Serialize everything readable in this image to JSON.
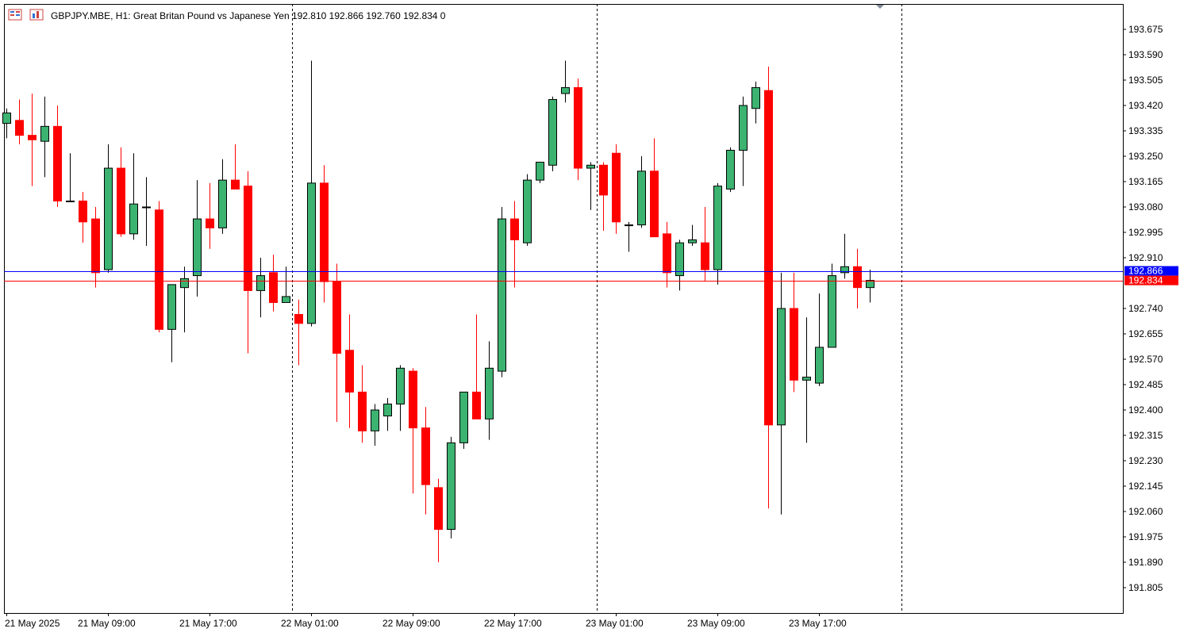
{
  "header": {
    "symbol_info": "GBPJPY.MBE, H1:  Great Britan Pound vs Japanese Yen  192.810 192.866 192.760 192.834  0",
    "icons": [
      "window-list-icon",
      "chart-window-icon"
    ]
  },
  "colors": {
    "bull": "#3cb371",
    "bear": "#ff0000",
    "ask_line": "#0000ff",
    "bid_line": "#ff0000",
    "frame": "#000000",
    "text": "#000000",
    "session_separator": "#000000"
  },
  "chart_data": {
    "type": "candlestick",
    "title": "GBPJPY.MBE, H1:  Great Britan Pound vs Japanese Yen  192.810 192.866 192.760 192.834  0",
    "symbol": "GBPJPY.MBE",
    "timeframe": "H1",
    "ylim": [
      191.72,
      193.76
    ],
    "y_ticks": [
      "193.675",
      "193.590",
      "193.505",
      "193.420",
      "193.335",
      "193.250",
      "193.165",
      "193.080",
      "192.995",
      "192.910",
      "192.740",
      "192.655",
      "192.570",
      "192.485",
      "192.400",
      "192.315",
      "192.230",
      "192.145",
      "192.060",
      "191.975",
      "191.890",
      "191.805"
    ],
    "x_ticks": [
      "21 May 2025",
      "21 May 09:00",
      "21 May 17:00",
      "22 May 01:00",
      "22 May 09:00",
      "22 May 17:00",
      "23 May 01:00",
      "23 May 09:00",
      "23 May 17:00"
    ],
    "price_lines": [
      {
        "label": "192.866",
        "value": 192.866,
        "kind": "ask"
      },
      {
        "label": "192.834",
        "value": 192.834,
        "kind": "bid"
      }
    ],
    "day_separators": [
      "22 May 00:00",
      "23 May 00:00",
      "24 May 00:00"
    ],
    "candles": [
      {
        "o": 193.36,
        "h": 193.41,
        "l": 193.31,
        "c": 193.395
      },
      {
        "o": 193.37,
        "h": 193.44,
        "l": 193.29,
        "c": 193.32
      },
      {
        "o": 193.32,
        "h": 193.46,
        "l": 193.15,
        "c": 193.305
      },
      {
        "o": 193.3,
        "h": 193.45,
        "l": 193.18,
        "c": 193.35
      },
      {
        "o": 193.35,
        "h": 193.42,
        "l": 193.08,
        "c": 193.1
      },
      {
        "o": 193.1,
        "h": 193.26,
        "l": 193.1,
        "c": 193.1
      },
      {
        "o": 193.1,
        "h": 193.13,
        "l": 192.96,
        "c": 193.03
      },
      {
        "o": 193.04,
        "h": 193.08,
        "l": 192.81,
        "c": 192.86
      },
      {
        "o": 192.87,
        "h": 193.29,
        "l": 192.86,
        "c": 193.21
      },
      {
        "o": 193.21,
        "h": 193.28,
        "l": 192.98,
        "c": 192.99
      },
      {
        "o": 192.99,
        "h": 193.26,
        "l": 192.97,
        "c": 193.09
      },
      {
        "o": 193.08,
        "h": 193.18,
        "l": 192.95,
        "c": 193.08
      },
      {
        "o": 193.07,
        "h": 193.1,
        "l": 192.66,
        "c": 192.67
      },
      {
        "o": 192.67,
        "h": 192.82,
        "l": 192.56,
        "c": 192.82
      },
      {
        "o": 192.81,
        "h": 192.88,
        "l": 192.66,
        "c": 192.84
      },
      {
        "o": 192.85,
        "h": 193.17,
        "l": 192.78,
        "c": 193.04
      },
      {
        "o": 193.04,
        "h": 193.16,
        "l": 192.94,
        "c": 193.01
      },
      {
        "o": 193.01,
        "h": 193.24,
        "l": 192.99,
        "c": 193.17
      },
      {
        "o": 193.17,
        "h": 193.29,
        "l": 193.14,
        "c": 193.14
      },
      {
        "o": 193.15,
        "h": 193.2,
        "l": 192.59,
        "c": 192.8
      },
      {
        "o": 192.8,
        "h": 192.91,
        "l": 192.71,
        "c": 192.85
      },
      {
        "o": 192.86,
        "h": 192.92,
        "l": 192.73,
        "c": 192.76
      },
      {
        "o": 192.76,
        "h": 192.88,
        "l": 192.76,
        "c": 192.78
      },
      {
        "o": 192.72,
        "h": 192.77,
        "l": 192.55,
        "c": 192.69
      },
      {
        "o": 192.69,
        "h": 193.57,
        "l": 192.68,
        "c": 193.16
      },
      {
        "o": 193.16,
        "h": 193.22,
        "l": 192.76,
        "c": 192.83
      },
      {
        "o": 192.83,
        "h": 192.89,
        "l": 192.36,
        "c": 192.59
      },
      {
        "o": 192.6,
        "h": 192.72,
        "l": 192.34,
        "c": 192.46
      },
      {
        "o": 192.46,
        "h": 192.55,
        "l": 192.29,
        "c": 192.33
      },
      {
        "o": 192.33,
        "h": 192.42,
        "l": 192.28,
        "c": 192.4
      },
      {
        "o": 192.38,
        "h": 192.44,
        "l": 192.33,
        "c": 192.42
      },
      {
        "o": 192.42,
        "h": 192.55,
        "l": 192.33,
        "c": 192.54
      },
      {
        "o": 192.53,
        "h": 192.54,
        "l": 192.12,
        "c": 192.34
      },
      {
        "o": 192.34,
        "h": 192.41,
        "l": 192.05,
        "c": 192.15
      },
      {
        "o": 192.14,
        "h": 192.17,
        "l": 191.89,
        "c": 192.0
      },
      {
        "o": 192.0,
        "h": 192.31,
        "l": 191.97,
        "c": 192.29
      },
      {
        "o": 192.29,
        "h": 192.45,
        "l": 192.27,
        "c": 192.46
      },
      {
        "o": 192.46,
        "h": 192.72,
        "l": 192.37,
        "c": 192.37
      },
      {
        "o": 192.37,
        "h": 192.63,
        "l": 192.3,
        "c": 192.54
      },
      {
        "o": 192.53,
        "h": 193.08,
        "l": 192.51,
        "c": 193.04
      },
      {
        "o": 193.04,
        "h": 193.1,
        "l": 192.81,
        "c": 192.97
      },
      {
        "o": 192.96,
        "h": 193.19,
        "l": 192.95,
        "c": 193.17
      },
      {
        "o": 193.17,
        "h": 193.23,
        "l": 193.16,
        "c": 193.23
      },
      {
        "o": 193.22,
        "h": 193.45,
        "l": 193.2,
        "c": 193.44
      },
      {
        "o": 193.46,
        "h": 193.57,
        "l": 193.43,
        "c": 193.48
      },
      {
        "o": 193.48,
        "h": 193.51,
        "l": 193.17,
        "c": 193.21
      },
      {
        "o": 193.21,
        "h": 193.23,
        "l": 193.07,
        "c": 193.22
      },
      {
        "o": 193.22,
        "h": 193.23,
        "l": 193.0,
        "c": 193.12
      },
      {
        "o": 193.26,
        "h": 193.29,
        "l": 192.99,
        "c": 193.03
      },
      {
        "o": 193.02,
        "h": 193.03,
        "l": 192.93,
        "c": 193.02
      },
      {
        "o": 193.02,
        "h": 193.25,
        "l": 193.01,
        "c": 193.2
      },
      {
        "o": 193.2,
        "h": 193.31,
        "l": 192.98,
        "c": 192.98
      },
      {
        "o": 192.99,
        "h": 193.03,
        "l": 192.81,
        "c": 192.86
      },
      {
        "o": 192.85,
        "h": 192.97,
        "l": 192.8,
        "c": 192.96
      },
      {
        "o": 192.96,
        "h": 193.02,
        "l": 192.95,
        "c": 192.97
      },
      {
        "o": 192.96,
        "h": 193.08,
        "l": 192.83,
        "c": 192.87
      },
      {
        "o": 192.87,
        "h": 193.16,
        "l": 192.82,
        "c": 193.15
      },
      {
        "o": 193.14,
        "h": 193.28,
        "l": 193.13,
        "c": 193.27
      },
      {
        "o": 193.27,
        "h": 193.45,
        "l": 193.15,
        "c": 193.42
      },
      {
        "o": 193.41,
        "h": 193.5,
        "l": 193.36,
        "c": 193.48
      },
      {
        "o": 193.47,
        "h": 193.55,
        "l": 192.07,
        "c": 192.35
      },
      {
        "o": 192.35,
        "h": 192.86,
        "l": 192.05,
        "c": 192.74
      },
      {
        "o": 192.74,
        "h": 192.86,
        "l": 192.46,
        "c": 192.5
      },
      {
        "o": 192.5,
        "h": 192.71,
        "l": 192.29,
        "c": 192.51
      },
      {
        "o": 192.49,
        "h": 192.79,
        "l": 192.48,
        "c": 192.61
      },
      {
        "o": 192.61,
        "h": 192.89,
        "l": 192.61,
        "c": 192.85
      },
      {
        "o": 192.86,
        "h": 192.99,
        "l": 192.84,
        "c": 192.88
      },
      {
        "o": 192.88,
        "h": 192.94,
        "l": 192.74,
        "c": 192.81
      },
      {
        "o": 192.81,
        "h": 192.87,
        "l": 192.76,
        "c": 192.834
      }
    ]
  }
}
